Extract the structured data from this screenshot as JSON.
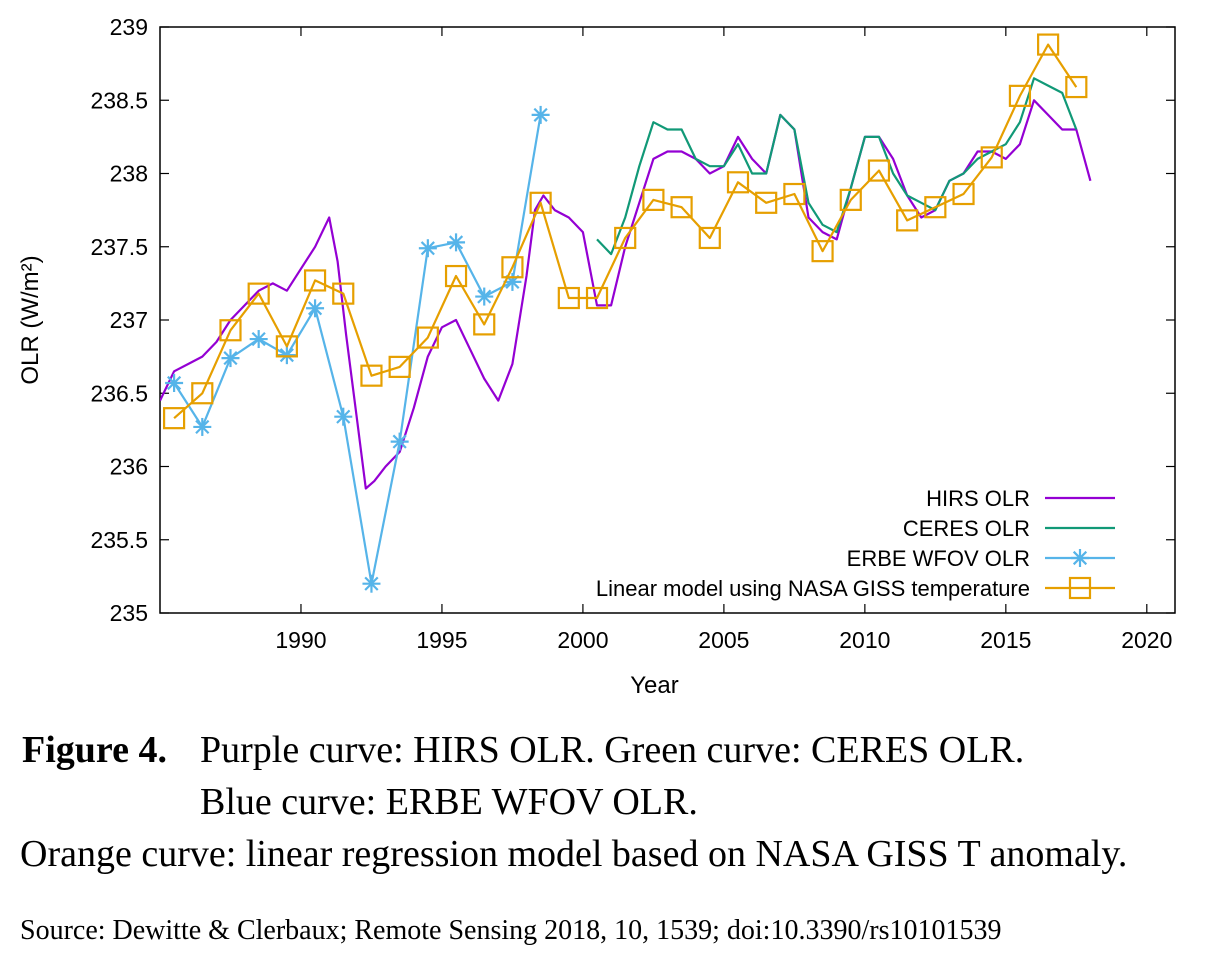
{
  "chart_data": {
    "type": "line",
    "xlabel": "Year",
    "ylabel": "OLR (W/m²)",
    "xlim": [
      1985.0,
      2021.0
    ],
    "ylim": [
      235,
      239
    ],
    "xticks": [
      1990,
      1995,
      2000,
      2005,
      2010,
      2015,
      2020
    ],
    "yticks": [
      "235",
      "235.5",
      "236",
      "236.5",
      "237",
      "237.5",
      "238",
      "238.5",
      "239"
    ],
    "legend_position": "bottom-right",
    "series": [
      {
        "name": "HIRS OLR",
        "color": "#9400d3",
        "marker": "none",
        "x": [
          1985.0,
          1985.5,
          1986.0,
          1986.5,
          1987.0,
          1987.5,
          1988.0,
          1988.5,
          1989.0,
          1989.5,
          1990.0,
          1990.5,
          1991.0,
          1991.3,
          1991.6,
          1992.0,
          1992.3,
          1992.6,
          1993.0,
          1993.5,
          1994.0,
          1994.5,
          1995.0,
          1995.5,
          1996.0,
          1996.5,
          1997.0,
          1997.5,
          1998.0,
          1998.3,
          1998.6,
          1999.0,
          1999.5,
          2000.0,
          2000.5,
          2001.0,
          2001.5,
          2002.0,
          2002.5,
          2003.0,
          2003.5,
          2004.0,
          2004.5,
          2005.0,
          2005.5,
          2006.0,
          2006.5,
          2007.0,
          2007.5,
          2008.0,
          2008.5,
          2009.0,
          2009.5,
          2010.0,
          2010.5,
          2011.0,
          2011.5,
          2012.0,
          2012.5,
          2013.0,
          2013.5,
          2014.0,
          2014.5,
          2015.0,
          2015.5,
          2016.0,
          2016.5,
          2017.0,
          2017.5,
          2018.0
        ],
        "y": [
          236.45,
          236.65,
          236.7,
          236.75,
          236.85,
          237.0,
          237.1,
          237.2,
          237.25,
          237.2,
          237.35,
          237.5,
          237.7,
          237.4,
          236.9,
          236.3,
          235.85,
          235.9,
          236.0,
          236.1,
          236.4,
          236.75,
          236.95,
          237.0,
          236.8,
          236.6,
          236.45,
          236.7,
          237.3,
          237.75,
          237.85,
          237.75,
          237.7,
          237.6,
          237.1,
          237.1,
          237.5,
          237.8,
          238.1,
          238.15,
          238.15,
          238.1,
          238.0,
          238.05,
          238.25,
          238.1,
          238.0,
          238.4,
          238.3,
          237.7,
          237.6,
          237.55,
          237.9,
          238.25,
          238.25,
          238.1,
          237.85,
          237.7,
          237.75,
          237.95,
          238.0,
          238.15,
          238.15,
          238.1,
          238.2,
          238.5,
          238.4,
          238.3,
          238.3,
          237.95
        ]
      },
      {
        "name": "CERES OLR",
        "color": "#119977",
        "marker": "none",
        "x": [
          2000.5,
          2001.0,
          2001.5,
          2002.0,
          2002.5,
          2003.0,
          2003.5,
          2004.0,
          2004.5,
          2005.0,
          2005.5,
          2006.0,
          2006.5,
          2007.0,
          2007.5,
          2008.0,
          2008.5,
          2009.0,
          2009.5,
          2010.0,
          2010.5,
          2011.0,
          2011.5,
          2012.0,
          2012.5,
          2013.0,
          2013.5,
          2014.0,
          2014.5,
          2015.0,
          2015.5,
          2016.0,
          2016.5,
          2017.0,
          2017.5
        ],
        "y": [
          237.55,
          237.45,
          237.7,
          238.05,
          238.35,
          238.3,
          238.3,
          238.1,
          238.05,
          238.05,
          238.2,
          238.0,
          238.0,
          238.4,
          238.3,
          237.8,
          237.65,
          237.6,
          237.9,
          238.25,
          238.25,
          238.0,
          237.85,
          237.8,
          237.75,
          237.95,
          238.0,
          238.1,
          238.15,
          238.2,
          238.35,
          238.65,
          238.6,
          238.55,
          238.3
        ]
      },
      {
        "name": "ERBE WFOV OLR",
        "color": "#56b4e9",
        "marker": "star",
        "x": [
          1985.5,
          1986.5,
          1987.5,
          1988.5,
          1989.5,
          1990.5,
          1991.5,
          1992.5,
          1993.5,
          1994.5,
          1995.5,
          1996.5,
          1997.5,
          1998.5
        ],
        "y": [
          236.57,
          236.27,
          236.74,
          236.87,
          236.76,
          237.08,
          236.34,
          235.2,
          236.17,
          237.49,
          237.53,
          237.16,
          237.26,
          238.4
        ]
      },
      {
        "name": "Linear model using NASA GISS temperature",
        "color": "#e69f00",
        "marker": "square",
        "x": [
          1985.5,
          1986.5,
          1987.5,
          1988.5,
          1989.5,
          1990.5,
          1991.5,
          1992.5,
          1993.5,
          1994.5,
          1995.5,
          1996.5,
          1997.5,
          1998.5,
          1999.5,
          2000.5,
          2001.5,
          2002.5,
          2003.5,
          2004.5,
          2005.5,
          2006.5,
          2007.5,
          2008.5,
          2009.5,
          2010.5,
          2011.5,
          2012.5,
          2013.5,
          2014.5,
          2015.5,
          2016.5,
          2017.5
        ],
        "y": [
          236.33,
          236.5,
          236.93,
          237.18,
          236.82,
          237.27,
          237.18,
          236.62,
          236.68,
          236.88,
          237.3,
          236.97,
          237.36,
          237.8,
          237.15,
          237.15,
          237.56,
          237.82,
          237.77,
          237.56,
          237.94,
          237.8,
          237.86,
          237.47,
          237.82,
          238.02,
          237.68,
          237.77,
          237.86,
          238.11,
          238.53,
          238.88,
          238.59
        ]
      }
    ]
  },
  "caption": {
    "figure_label": "Figure 4.",
    "line1": "Purple curve:  HIRS OLR. Green curve:  CERES OLR.",
    "line2": "Blue curve:  ERBE WFOV OLR.",
    "line3": "Orange curve: linear regression model based on NASA GISS T anomaly."
  },
  "source": "Source: Dewitte & Clerbaux; Remote Sensing 2018, 10, 1539; doi:10.3390/rs10101539"
}
